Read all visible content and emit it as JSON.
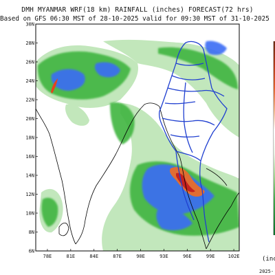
{
  "header": {
    "title": "DMH MYANMAR WRF(18 km) RAINFALL (inches) FORECAST(72 hrs)",
    "subtitle": "Based on GFS 06:30 MST of 28-10-2025 valid for 09:30 MST of 31-10-2025"
  },
  "map": {
    "lat_ticks": [
      "30N",
      "28N",
      "26N",
      "24N",
      "22N",
      "20N",
      "18N",
      "16N",
      "14N",
      "12N",
      "10N",
      "8N",
      "6N"
    ],
    "lon_ticks": [
      "78E",
      "81E",
      "84E",
      "87E",
      "90E",
      "93E",
      "96E",
      "99E",
      "102E"
    ],
    "lat_range": [
      6,
      30
    ],
    "lon_range": [
      76.5,
      102.7
    ],
    "colors": {
      "land_outline": "#000000",
      "border_blue": "#1f3fd0",
      "light_green": "#bde8b6",
      "medium_green": "#3db53d",
      "blue": "#3a6cf5",
      "orange": "#f26d1f",
      "red": "#c41e1e"
    }
  },
  "legend": {
    "unit_label": "(inch",
    "date_label": "2025-"
  }
}
